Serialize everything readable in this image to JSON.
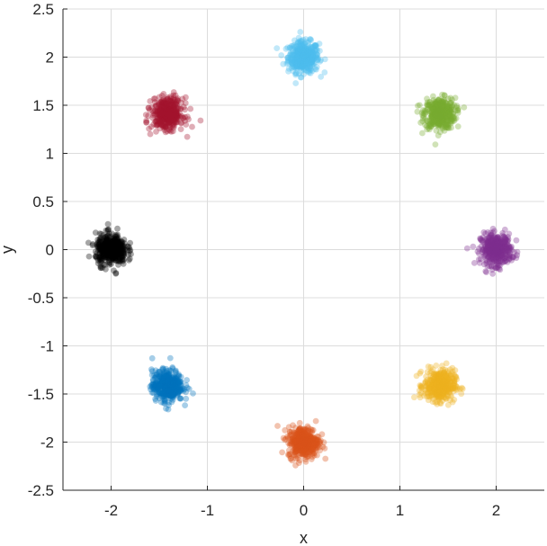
{
  "chart_data": {
    "type": "scatter",
    "title": "",
    "xlabel": "x",
    "ylabel": "y",
    "xlim": [
      -2.5,
      2.5
    ],
    "ylim": [
      -2.5,
      2.5
    ],
    "xticks": [
      -2,
      -1,
      0,
      1,
      2
    ],
    "xtick_labels": [
      "-2",
      "-1",
      "0",
      "1",
      "2"
    ],
    "yticks": [
      -2.5,
      -2,
      -1.5,
      -1,
      -0.5,
      0,
      0.5,
      1,
      1.5,
      2,
      2.5
    ],
    "ytick_labels": [
      "-2.5",
      "-2",
      "-1.5",
      "-1",
      "-0.5",
      "0",
      "0.5",
      "1",
      "1.5",
      "2",
      "2.5"
    ],
    "grid": true,
    "legend": "none",
    "series": [
      {
        "center": [
          0,
          2
        ],
        "spread": 0.08,
        "color": "#4DBEEE"
      },
      {
        "center": [
          1.414,
          1.414
        ],
        "spread": 0.08,
        "color": "#77AC30"
      },
      {
        "center": [
          2,
          0
        ],
        "spread": 0.08,
        "color": "#7E2F8E"
      },
      {
        "center": [
          1.414,
          -1.414
        ],
        "spread": 0.08,
        "color": "#EDB120"
      },
      {
        "center": [
          0,
          -2
        ],
        "spread": 0.08,
        "color": "#D95319"
      },
      {
        "center": [
          -1.414,
          -1.414
        ],
        "spread": 0.08,
        "color": "#0072BD"
      },
      {
        "center": [
          -2,
          0
        ],
        "spread": 0.08,
        "color": "#000000"
      },
      {
        "center": [
          -1.414,
          1.414
        ],
        "spread": 0.08,
        "color": "#A2142F"
      }
    ]
  }
}
